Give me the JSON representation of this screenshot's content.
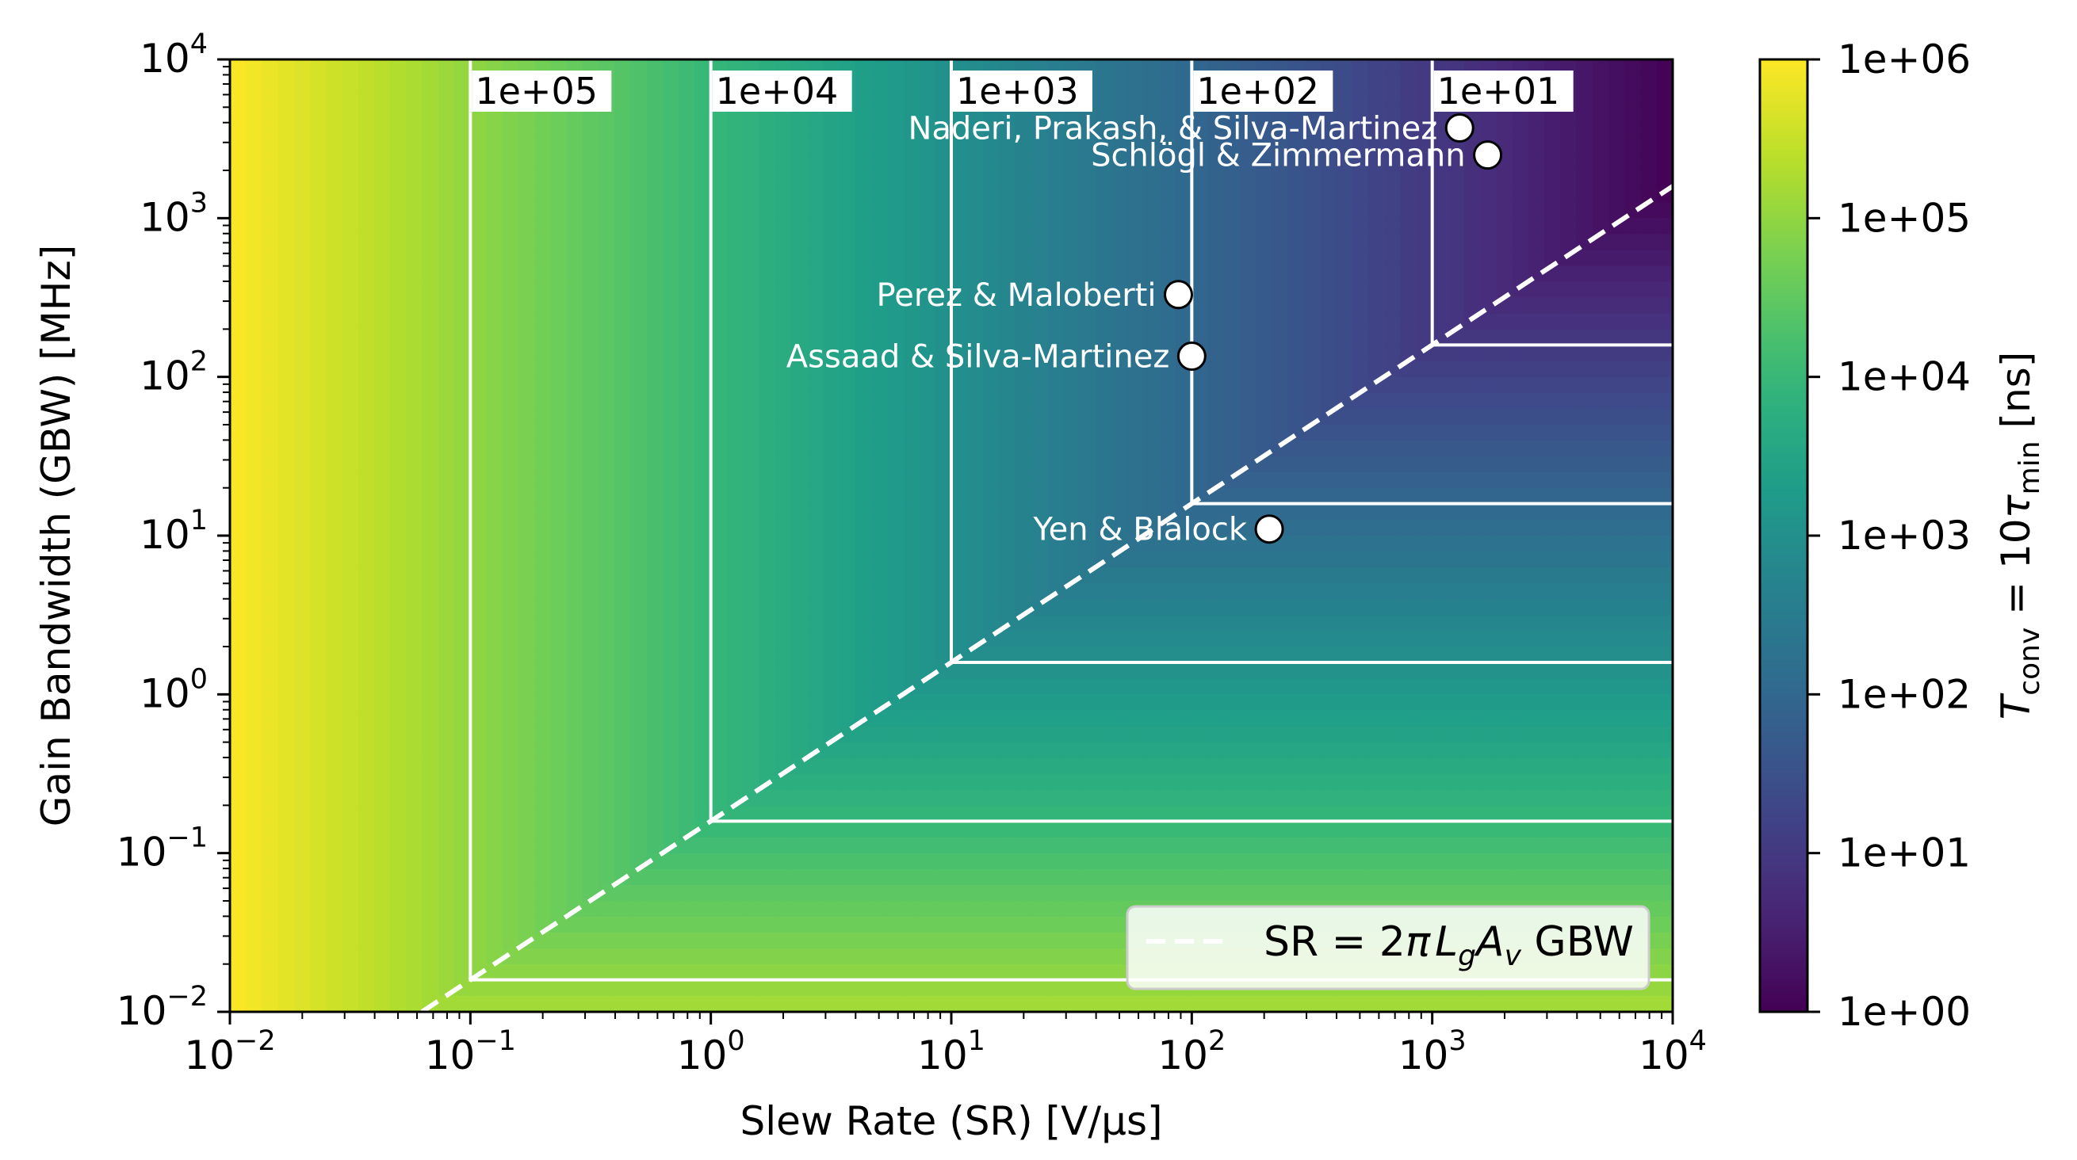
{
  "chart_data": {
    "type": "heatmap",
    "xlabel": "Slew Rate (SR) [V/μs]",
    "ylabel": "Gain Bandwidth (GBW) [MHz]",
    "x_scale": "log",
    "y_scale": "log",
    "xlim": [
      0.01,
      10000
    ],
    "ylim": [
      0.01,
      10000
    ],
    "x_ticks": [
      {
        "base": "10",
        "exp": "−2",
        "value": 0.01
      },
      {
        "base": "10",
        "exp": "−1",
        "value": 0.1
      },
      {
        "base": "10",
        "exp": "0",
        "value": 1
      },
      {
        "base": "10",
        "exp": "1",
        "value": 10
      },
      {
        "base": "10",
        "exp": "2",
        "value": 100
      },
      {
        "base": "10",
        "exp": "3",
        "value": 1000
      },
      {
        "base": "10",
        "exp": "4",
        "value": 10000
      }
    ],
    "y_ticks": [
      {
        "base": "10",
        "exp": "−2",
        "value": 0.01
      },
      {
        "base": "10",
        "exp": "−1",
        "value": 0.1
      },
      {
        "base": "10",
        "exp": "0",
        "value": 1
      },
      {
        "base": "10",
        "exp": "1",
        "value": 10
      },
      {
        "base": "10",
        "exp": "2",
        "value": 100
      },
      {
        "base": "10",
        "exp": "3",
        "value": 1000
      },
      {
        "base": "10",
        "exp": "4",
        "value": 10000
      }
    ],
    "colormap": "viridis_r",
    "colorbar": {
      "label_main": "T",
      "label_sub": "conv",
      "label_mid": " = 10",
      "label_tau": "τ",
      "label_tau_sub": "min",
      "label_unit": " [ns]",
      "scale": "log",
      "range": [
        1,
        1000000
      ],
      "ticks": [
        "1e+06",
        "1e+05",
        "1e+04",
        "1e+03",
        "1e+02",
        "1e+01",
        "1e+00"
      ],
      "tick_values": [
        1000000,
        100000,
        10000,
        1000,
        100,
        10,
        1
      ]
    },
    "contours": [
      {
        "label": "1e+05",
        "sr": 0.1,
        "gbw": 0.0159
      },
      {
        "label": "1e+04",
        "sr": 1,
        "gbw": 0.159
      },
      {
        "label": "1e+03",
        "sr": 10,
        "gbw": 1.59
      },
      {
        "label": "1e+02",
        "sr": 100,
        "gbw": 15.9
      },
      {
        "label": "1e+01",
        "sr": 1000,
        "gbw": 159
      }
    ],
    "boundary_line": {
      "label_lhs": "SR",
      "label_eq": " = 2",
      "label_pi": "π",
      "label_L": "L",
      "label_g": "g",
      "label_A": "A",
      "label_v": "v",
      "label_rhs": " GBW",
      "slope_gbw_per_sr": 0.159,
      "style": "dashed",
      "color": "#ffffff"
    },
    "points": [
      {
        "label": "Naderi, Prakash, & Silva-Martinez",
        "sr": 1300,
        "gbw": 3700
      },
      {
        "label": "Schlögl & Zimmermann",
        "sr": 1700,
        "gbw": 2500
      },
      {
        "label": "Perez & Maloberti",
        "sr": 88,
        "gbw": 330
      },
      {
        "label": "Assaad & Silva-Martinez",
        "sr": 100,
        "gbw": 135
      },
      {
        "label": "Yen & Blalock",
        "sr": 210,
        "gbw": 11
      }
    ],
    "legend_position": "lower-right",
    "grid": false
  }
}
